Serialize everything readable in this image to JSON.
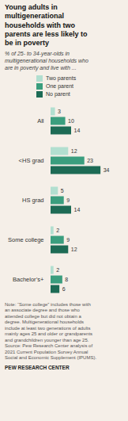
{
  "chart_data": {
    "type": "bar",
    "orientation": "horizontal",
    "title": "Young adults in\nmultigenerational\nhouseholds with two\nparents are less likely to\nbe in poverty",
    "subtitle": "% of 25- to 34-year-olds in\nmultigenerational households who\nare in poverty and live with ...",
    "categories": [
      "All",
      "<HS grad",
      "HS grad",
      "Some college",
      "Bachelor’s+"
    ],
    "series": [
      {
        "name": "Two parents",
        "color": "#b2dfd0",
        "values": [
          3,
          12,
          5,
          2,
          2
        ]
      },
      {
        "name": "One parent",
        "color": "#3a9e7e",
        "values": [
          10,
          23,
          9,
          9,
          8
        ]
      },
      {
        "name": "No parent",
        "color": "#1d6b55",
        "values": [
          14,
          34,
          14,
          12,
          6
        ]
      }
    ],
    "xlim": [
      0,
      42
    ],
    "data_labels": true,
    "tick_labels": "y",
    "grid": false,
    "legend": "top",
    "annotations": [
      "Note: “Some college” includes those with\nan associate degree and those who\nattended college but did not obtain a\ndegree. Multigenerational households\ninclude at least two generations of adults\nmainly ages 25 and older or grandparents\nand grandchildren younger than age 25.\nSource: Pew Research Center analysis of\n2021 Current Population Survey Annual\nSocial and Economic Supplement (IPUMS).",
      "PEW RESEARCH CENTER"
    ]
  }
}
